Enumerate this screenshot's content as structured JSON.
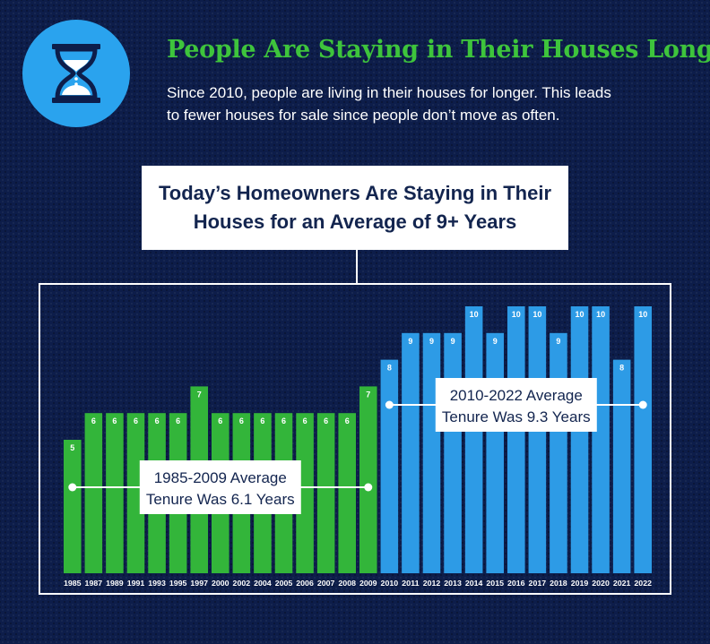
{
  "header": {
    "title": "People Are Staying in Their Houses Longer",
    "description_line1": "Since 2010, people are living in their houses for longer. This leads",
    "description_line2": "to fewer houses for sale since people don’t move as often.",
    "icon": "hourglass-icon"
  },
  "chart_title": {
    "line1": "Today’s Homeowners Are Staying in Their",
    "line2": "Houses for an Average of 9+ Years"
  },
  "colors": {
    "background": "#0d1d4a",
    "green": "#33b53a",
    "blue": "#2d9be6",
    "headline_green": "#3ec43c",
    "icon_circle": "#2aa3ee"
  },
  "chart_data": {
    "type": "bar",
    "categories": [
      "1985",
      "1987",
      "1989",
      "1991",
      "1993",
      "1995",
      "1997",
      "2000",
      "2002",
      "2004",
      "2005",
      "2006",
      "2007",
      "2008",
      "2009",
      "2010",
      "2011",
      "2012",
      "2013",
      "2014",
      "2015",
      "2016",
      "2017",
      "2018",
      "2019",
      "2020",
      "2021",
      "2022"
    ],
    "values": [
      5,
      6,
      6,
      6,
      6,
      6,
      7,
      6,
      6,
      6,
      6,
      6,
      6,
      6,
      7,
      8,
      9,
      9,
      9,
      10,
      9,
      10,
      10,
      9,
      10,
      10,
      8,
      10
    ],
    "data_labels": [
      "5",
      "6",
      "6",
      "6",
      "6",
      "6",
      "7",
      "6",
      "6",
      "6",
      "6",
      "6",
      "6",
      "6",
      "7",
      "8",
      "9",
      "9",
      "9",
      "10",
      "9",
      "10",
      "10",
      "9",
      "10",
      "10",
      "8",
      "10"
    ],
    "bar_colors": [
      "green",
      "green",
      "green",
      "green",
      "green",
      "green",
      "green",
      "green",
      "green",
      "green",
      "green",
      "green",
      "green",
      "green",
      "green",
      "blue",
      "blue",
      "blue",
      "blue",
      "blue",
      "blue",
      "blue",
      "blue",
      "blue",
      "blue",
      "blue",
      "blue",
      "blue"
    ],
    "ylim": [
      0,
      10
    ],
    "grid": false,
    "legend": "none",
    "title": "",
    "xlabel": "",
    "ylabel": "",
    "annotations": [
      {
        "line1": "1985-2009 Average",
        "line2": "Tenure Was 6.1 Years",
        "value": 6.1,
        "range": [
          "1985",
          "2009"
        ]
      },
      {
        "line1": "2010-2022 Average",
        "line2": "Tenure Was 9.3 Years",
        "value": 9.3,
        "range": [
          "2010",
          "2022"
        ]
      }
    ]
  }
}
